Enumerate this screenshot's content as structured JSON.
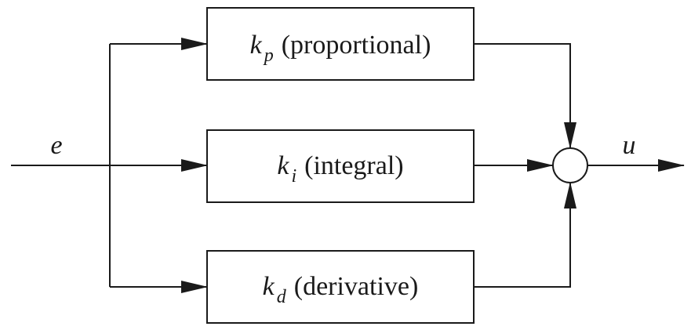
{
  "diagram": {
    "input_signal": "e",
    "output_signal": "u",
    "blocks": [
      {
        "gain_symbol": "k",
        "gain_subscript": "p",
        "description": "(proportional)"
      },
      {
        "gain_symbol": "k",
        "gain_subscript": "i",
        "description": "(integral)"
      },
      {
        "gain_symbol": "k",
        "gain_subscript": "d",
        "description": "(derivative)"
      }
    ],
    "summing_junction": "sum"
  },
  "colors": {
    "ink": "#1a1a1a",
    "background": "#ffffff"
  }
}
